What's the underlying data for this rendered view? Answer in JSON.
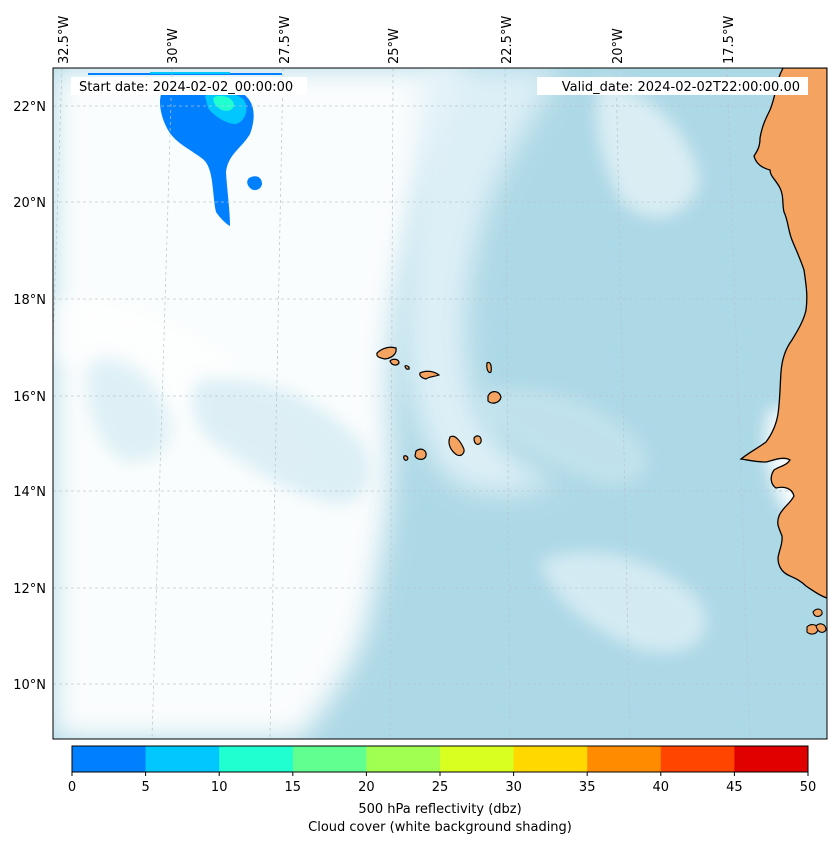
{
  "map": {
    "lon_labels": [
      "32.5°W",
      "30°W",
      "27.5°W",
      "25°W",
      "22.5°W",
      "20°W",
      "17.5°W"
    ],
    "lat_labels": [
      "22°N",
      "20°N",
      "18°N",
      "16°N",
      "14°N",
      "12°N",
      "10°N"
    ],
    "start_date": "Start date: 2024-02-02_00:00:00",
    "valid_date": "Valid_date: 2024-02-02T22:00:00.00",
    "land_color": "#F4A460",
    "ocean_color": "#ADD8E6",
    "cloud_color": "#FFFFFF"
  },
  "colorbar": {
    "title": "500 hPa reflectivity (dbz)",
    "subtitle": "Cloud cover (white background shading)",
    "ticks": [
      "0",
      "5",
      "10",
      "15",
      "20",
      "25",
      "30",
      "35",
      "40",
      "45",
      "50"
    ],
    "colors": [
      "#0080FF",
      "#00C8FF",
      "#20FFD0",
      "#60FF90",
      "#A0FF50",
      "#D8FF20",
      "#FFD800",
      "#FF8C00",
      "#FF4500",
      "#E00000"
    ]
  }
}
